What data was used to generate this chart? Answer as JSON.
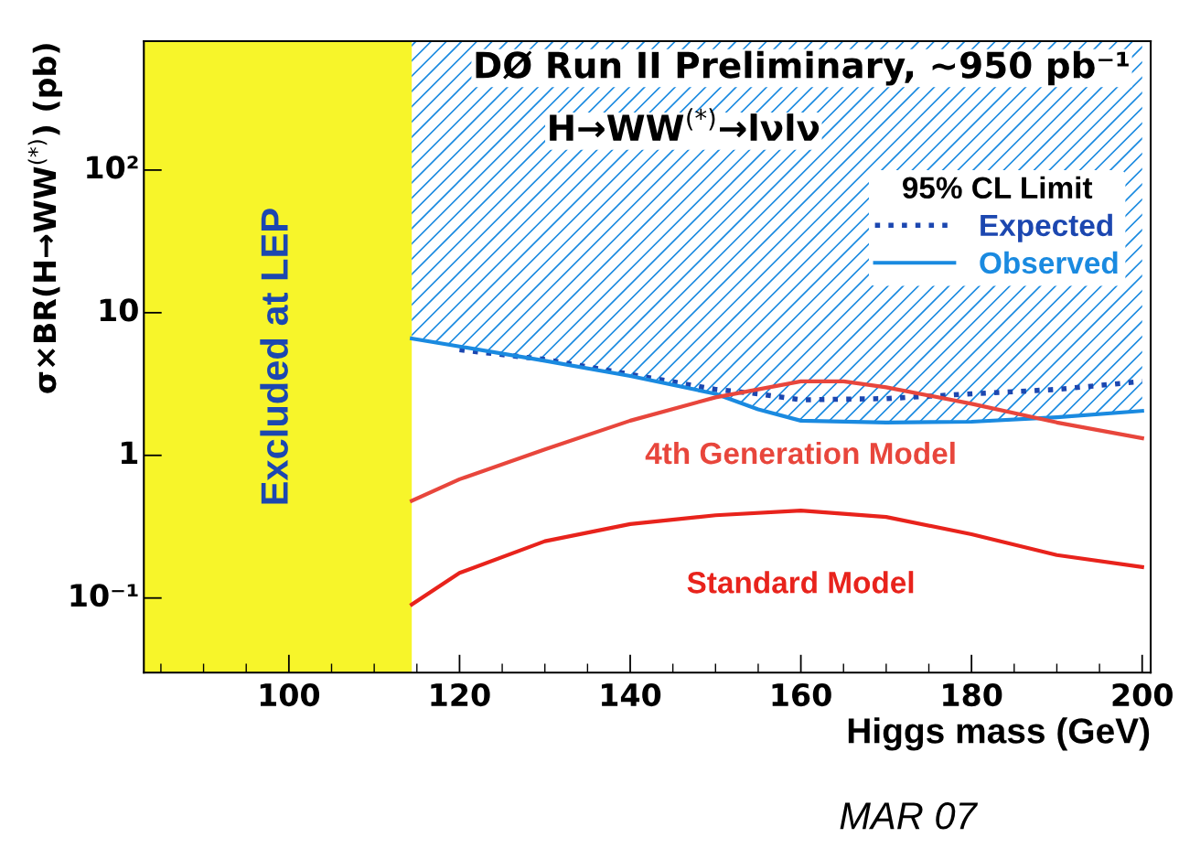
{
  "chart_data": {
    "type": "line",
    "title": "DØ Run II Preliminary, ~950 pb⁻¹",
    "subtitle": "H→WW$^{(*)}$→lνlν",
    "xlabel": "Higgs mass (GeV)",
    "ylabel": "σ×BR(H→WW$^{(*)}$) (pb)",
    "legend_title": "95% CL Limit",
    "log": "y",
    "xlim": [
      83,
      201
    ],
    "xticks": [
      100,
      120,
      140,
      160,
      180,
      200
    ],
    "ylim": [
      0.03,
      800
    ],
    "yticks": [
      {
        "value": 100,
        "label": "10²"
      },
      10,
      1,
      {
        "value": 0.1,
        "label": "10⁻¹"
      }
    ],
    "grid": false,
    "legend": "top right",
    "bands": [
      {
        "axis": "x",
        "from": 83,
        "to": 114.4,
        "label": "Excluded at LEP",
        "color": "#f7f52a"
      }
    ],
    "series": [
      {
        "name": "Expected",
        "color": "#1c47b0",
        "line_style": "dotted",
        "x": [
          120,
          130,
          140,
          150,
          155,
          160,
          170,
          180,
          190,
          200
        ],
        "values": [
          5.5,
          4.7,
          3.7,
          2.9,
          2.7,
          2.45,
          2.5,
          2.7,
          2.9,
          3.3
        ]
      },
      {
        "name": "Observed",
        "color": "#1a8ae0",
        "line_style": "solid",
        "x": [
          114.4,
          120,
          130,
          140,
          150,
          155,
          160,
          170,
          180,
          190,
          200
        ],
        "values": [
          6.6,
          5.8,
          4.6,
          3.6,
          2.7,
          2.1,
          1.75,
          1.7,
          1.72,
          1.85,
          2.05
        ],
        "lower": [
          6.6,
          5.8,
          4.6,
          3.6,
          2.7,
          2.1,
          1.75,
          1.7,
          1.72,
          1.85,
          2.05
        ],
        "upper": [
          800,
          800,
          800,
          800,
          800,
          800,
          800,
          800,
          800,
          800,
          800
        ]
      },
      {
        "name": "4th Generation Model",
        "color": "#e8463c",
        "x": [
          114.4,
          120,
          130,
          140,
          150,
          160,
          165,
          170,
          180,
          190,
          200
        ],
        "values": [
          0.48,
          0.68,
          1.1,
          1.75,
          2.55,
          3.3,
          3.3,
          3.0,
          2.3,
          1.7,
          1.32
        ]
      },
      {
        "name": "Standard Model",
        "color": "#e8231c",
        "x": [
          114.4,
          120,
          130,
          140,
          150,
          160,
          170,
          180,
          190,
          200
        ],
        "values": [
          0.09,
          0.15,
          0.25,
          0.33,
          0.38,
          0.41,
          0.37,
          0.28,
          0.2,
          0.165
        ]
      }
    ],
    "annotations": [
      "MAR 07"
    ]
  }
}
